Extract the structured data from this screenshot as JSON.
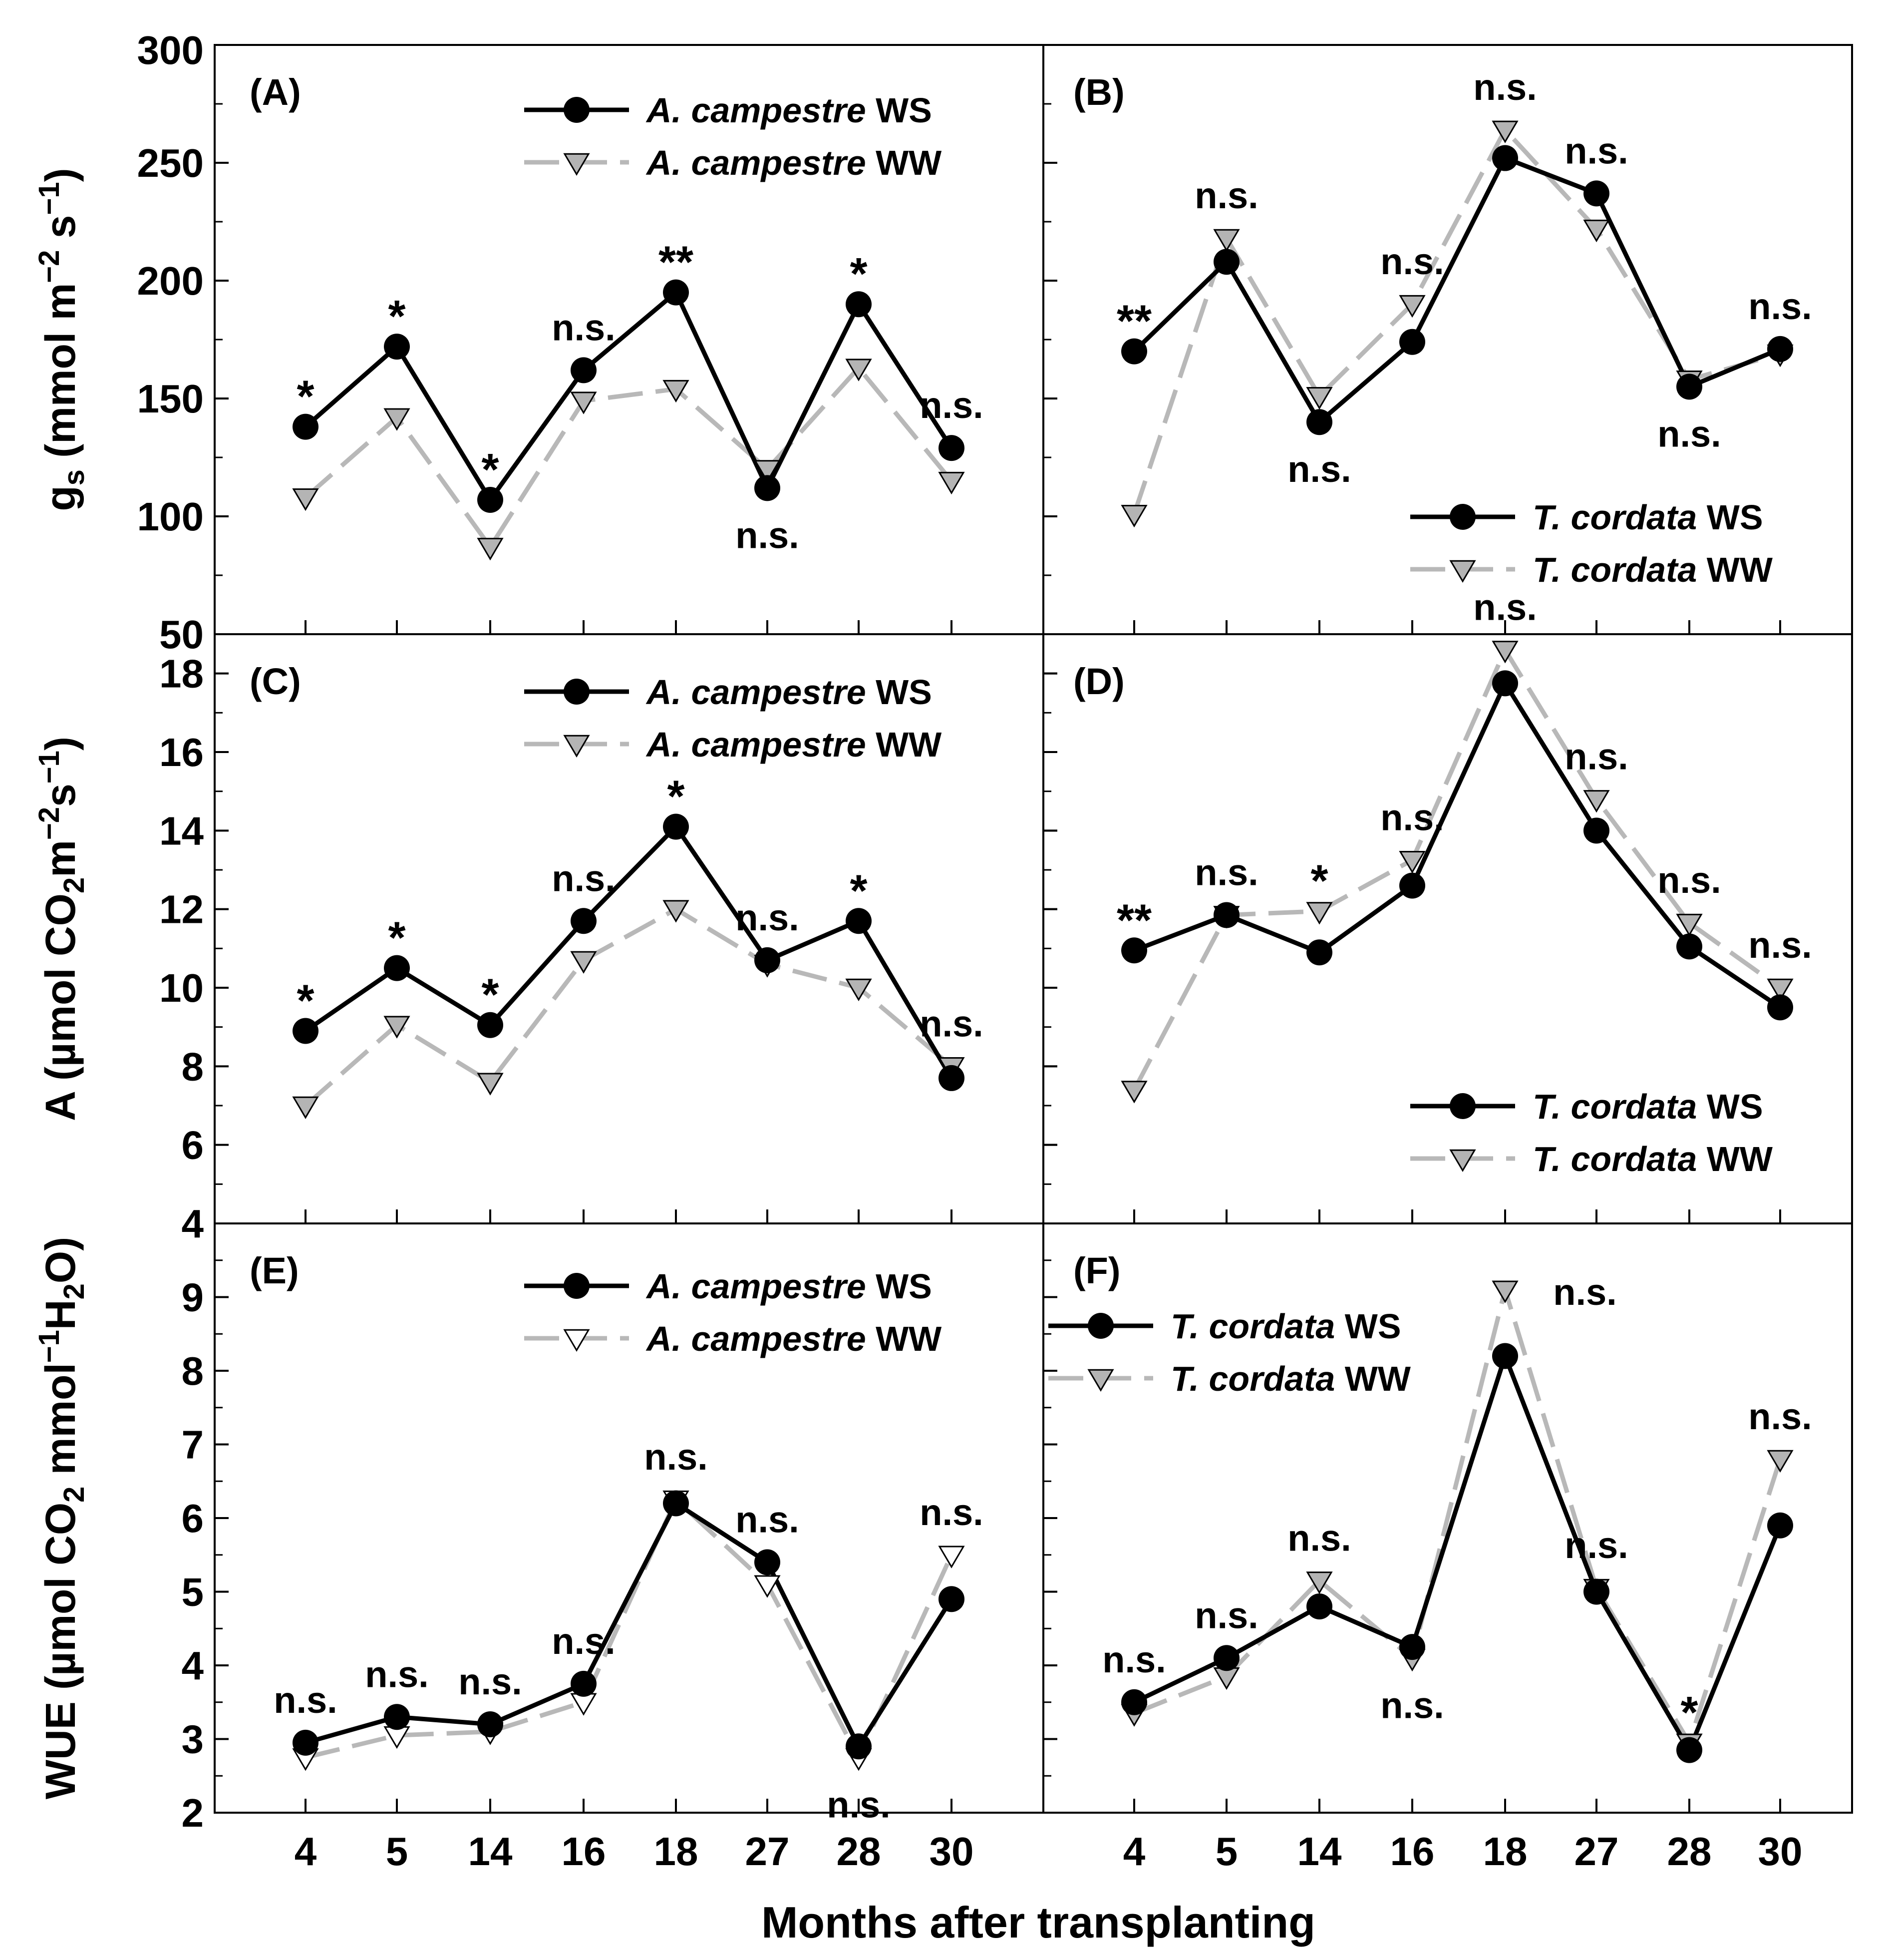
{
  "figure": {
    "xlabel": "Months after transplanting",
    "x_categories": [
      "4",
      "5",
      "14",
      "16",
      "18",
      "27",
      "28",
      "30"
    ],
    "series_colors": {
      "WS": "#000000",
      "WW": "#b8b8b8",
      "marker_fill_ww": "#b4b4b4"
    }
  },
  "chart_data": [
    {
      "type": "line",
      "panel": "(A)",
      "ylabel": "g_s (mmol m^-2 s^-1)",
      "ylabel_parts": {
        "main": "g",
        "sub": "s",
        "units_a": " (mmol m",
        "sup1": "−2",
        "units_b": " s",
        "sup2": "−1",
        "units_c": ")"
      },
      "ylim": [
        50,
        300
      ],
      "yticks": [
        "50",
        "100",
        "150",
        "200",
        "250",
        "300"
      ],
      "legend": {
        "position": "top-right",
        "entries": [
          {
            "italic": "A. campestre",
            "text": " WS"
          },
          {
            "italic": "A. campestre",
            "text": " WW"
          }
        ]
      },
      "series": [
        {
          "name": "A. campestre WS",
          "values": [
            138,
            172,
            107,
            162,
            195,
            112,
            190,
            129
          ]
        },
        {
          "name": "A. campestre WW",
          "values": [
            108,
            142,
            87,
            149,
            154,
            120,
            163,
            115
          ]
        }
      ],
      "annotations": [
        "*",
        "*",
        "*",
        "n.s.",
        "**",
        "n.s.",
        "*",
        "n.s."
      ]
    },
    {
      "type": "line",
      "panel": "(B)",
      "ylim": [
        50,
        300
      ],
      "legend": {
        "position": "bottom-right",
        "entries": [
          {
            "italic": "T. cordata",
            "text": " WS"
          },
          {
            "italic": "T. cordata",
            "text": " WW"
          }
        ]
      },
      "series": [
        {
          "name": "T. cordata WS",
          "values": [
            170,
            208,
            140,
            174,
            252,
            237,
            155,
            171
          ]
        },
        {
          "name": "T. cordata WW",
          "values": [
            101,
            218,
            151,
            190,
            264,
            222,
            158,
            169
          ]
        }
      ],
      "annotations": [
        "**",
        "n.s.",
        "n.s.",
        "n.s.",
        "n.s.",
        "n.s.",
        "n.s.",
        "n.s."
      ]
    },
    {
      "type": "line",
      "panel": "(C)",
      "ylabel": "A (µmol CO2 m^-2 s^-1)",
      "ylabel_parts": {
        "a": "A (µmol CO",
        "sub": "2",
        "b": "m",
        "sup1": "−2",
        "c": "s",
        "sup2": "−1",
        "d": ")"
      },
      "ylim": [
        4,
        19
      ],
      "yticks": [
        "4",
        "6",
        "8",
        "10",
        "12",
        "14",
        "16",
        "18"
      ],
      "legend": {
        "position": "top-right",
        "entries": [
          {
            "italic": "A. campestre",
            "text": " WS"
          },
          {
            "italic": "A. campestre",
            "text": " WW"
          }
        ]
      },
      "series": [
        {
          "name": "A. campestre WS",
          "values": [
            8.9,
            10.5,
            9.05,
            11.7,
            14.1,
            10.7,
            11.7,
            7.7
          ]
        },
        {
          "name": "A. campestre WW",
          "values": [
            7.0,
            9.05,
            7.6,
            10.7,
            12.0,
            10.6,
            10.0,
            8.0
          ]
        }
      ],
      "annotations": [
        "*",
        "*",
        "*",
        "n.s.",
        "*",
        "n.s.",
        "*",
        "n.s."
      ]
    },
    {
      "type": "line",
      "panel": "(D)",
      "ylim": [
        4,
        19
      ],
      "legend": {
        "position": "bottom-right",
        "entries": [
          {
            "italic": "T. cordata",
            "text": " WS"
          },
          {
            "italic": "T. cordata",
            "text": " WW"
          }
        ]
      },
      "series": [
        {
          "name": "T. cordata WS",
          "values": [
            10.95,
            11.85,
            10.9,
            12.6,
            17.75,
            14.0,
            11.05,
            9.5
          ]
        },
        {
          "name": "T. cordata WW",
          "values": [
            7.4,
            11.85,
            11.95,
            13.25,
            18.6,
            14.8,
            11.65,
            10.0
          ]
        }
      ],
      "annotations": [
        "**",
        "n.s.",
        "*",
        "n.s.",
        "n.s.",
        "n.s.",
        "n.s.",
        "n.s."
      ]
    },
    {
      "type": "line",
      "panel": "(E)",
      "ylabel": "WUE (µmol CO2 mmol^-1 H2O)",
      "ylabel_parts": {
        "a": "WUE (µmol CO",
        "sub": "2",
        "b": "  mmol",
        "sup": "−1",
        "c": "H",
        "sub2": "2",
        "d": "O)"
      },
      "ylim": [
        2,
        10
      ],
      "yticks": [
        "2",
        "3",
        "4",
        "5",
        "6",
        "7",
        "8",
        "9"
      ],
      "legend": {
        "position": "top-right",
        "entries": [
          {
            "italic": "A. campestre",
            "text": " WS"
          },
          {
            "italic": "A. campestre",
            "text": " WW"
          }
        ]
      },
      "series": [
        {
          "name": "A. campestre WS",
          "values": [
            2.95,
            3.3,
            3.2,
            3.75,
            6.2,
            5.4,
            2.9,
            4.9
          ]
        },
        {
          "name": "A. campestre WW",
          "values": [
            2.75,
            3.05,
            3.1,
            3.5,
            6.25,
            5.1,
            2.75,
            5.5
          ]
        }
      ],
      "annotations": [
        "n.s.",
        "n.s.",
        "n.s.",
        "n.s.",
        "n.s.",
        "n.s.",
        "n.s.",
        "n.s."
      ]
    },
    {
      "type": "line",
      "panel": "(F)",
      "ylim": [
        2,
        10
      ],
      "legend": {
        "position": "top-left",
        "entries": [
          {
            "italic": "T. cordata",
            "text": " WS"
          },
          {
            "italic": "T. cordata",
            "text": " WW"
          }
        ]
      },
      "series": [
        {
          "name": "T. cordata WS",
          "values": [
            3.5,
            4.1,
            4.8,
            4.25,
            8.2,
            5.0,
            2.85,
            5.9
          ]
        },
        {
          "name": "T. cordata WW",
          "values": [
            3.35,
            3.85,
            5.15,
            4.1,
            9.1,
            5.05,
            2.95,
            6.8
          ]
        }
      ],
      "annotations": [
        "n.s.",
        "n.s.",
        "n.s.",
        "n.s.",
        "n.s.",
        "n.s.",
        "*",
        "n.s."
      ]
    }
  ]
}
